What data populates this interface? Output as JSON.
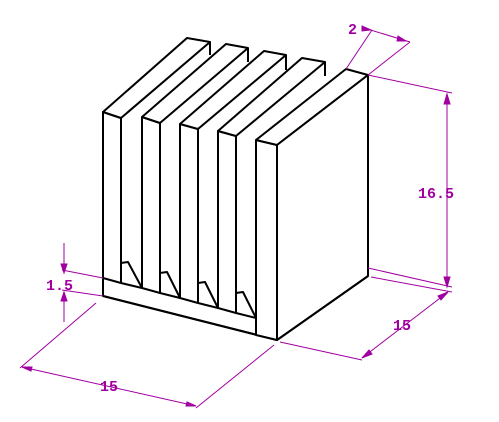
{
  "colors": {
    "outline": "#000000",
    "dimension": "#a000a0",
    "background": "#ffffff"
  },
  "part": {
    "name": "heat-sink",
    "fin_count": 5
  },
  "dimensions": {
    "fin_thickness": "2",
    "height": "16.5",
    "depth": "15",
    "width": "15",
    "base_thickness": "1.5"
  }
}
